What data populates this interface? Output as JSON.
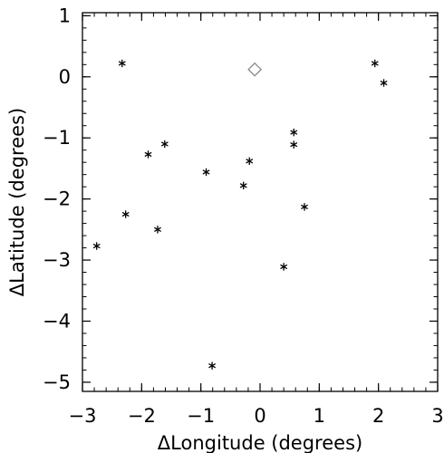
{
  "chart_data": {
    "type": "scatter",
    "xlabel": "ΔLongitude (degrees)",
    "ylabel": "ΔLatitude (degrees)",
    "xlim": [
      -3,
      3
    ],
    "ylim": [
      -5.15,
      1.05
    ],
    "x_ticks": [
      -3,
      -2,
      -1,
      0,
      1,
      2,
      3
    ],
    "x_tick_labels": [
      "−3",
      "−2",
      "−1",
      "0",
      "1",
      "2",
      "3"
    ],
    "y_ticks": [
      -5,
      -4,
      -3,
      -2,
      -1,
      0,
      1
    ],
    "y_tick_labels": [
      "−5",
      "−4",
      "−3",
      "−2",
      "−1",
      "0",
      "1"
    ],
    "grid": false,
    "series": [
      {
        "marker": "asterisk",
        "color": "#000000",
        "points": [
          {
            "x": -2.33,
            "y": 0.22
          },
          {
            "x": 1.94,
            "y": 0.22
          },
          {
            "x": 2.09,
            "y": -0.1
          },
          {
            "x": -1.89,
            "y": -1.27
          },
          {
            "x": -1.61,
            "y": -1.1
          },
          {
            "x": -0.91,
            "y": -1.56
          },
          {
            "x": -0.18,
            "y": -1.38
          },
          {
            "x": -0.28,
            "y": -1.78
          },
          {
            "x": 0.57,
            "y": -0.91
          },
          {
            "x": 0.57,
            "y": -1.11
          },
          {
            "x": 0.75,
            "y": -2.13
          },
          {
            "x": -2.27,
            "y": -2.25
          },
          {
            "x": -1.73,
            "y": -2.5
          },
          {
            "x": -2.76,
            "y": -2.77
          },
          {
            "x": 0.4,
            "y": -3.11
          },
          {
            "x": -0.81,
            "y": -4.73
          }
        ]
      },
      {
        "marker": "diamond",
        "color": "#888888",
        "points": [
          {
            "x": -0.09,
            "y": 0.12
          }
        ]
      }
    ]
  }
}
